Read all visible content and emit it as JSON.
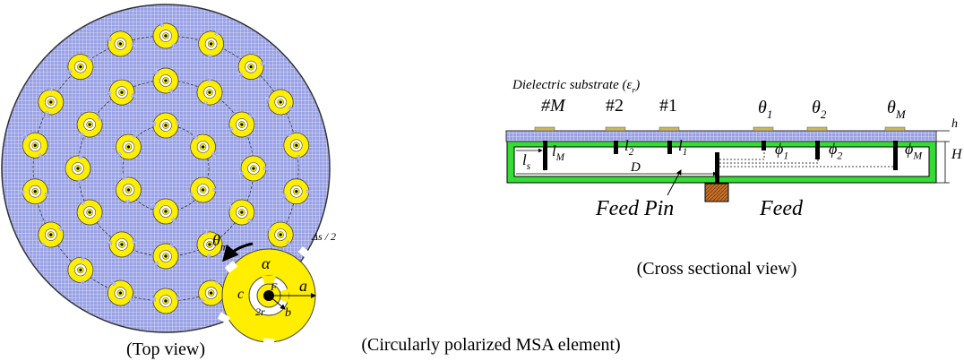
{
  "captions": {
    "top_view": "(Top view)",
    "cross_section": "(Cross sectional view)",
    "element": "(Circularly polarized MSA element)"
  },
  "cross_section_labels": [
    {
      "text": "Dielectric substrate (ε",
      "sub": "r",
      "tail": ")"
    },
    {
      "text": "#M"
    },
    {
      "text": "#2"
    },
    {
      "text": "#1"
    },
    {
      "text": "θ",
      "sub": "1"
    },
    {
      "text": "θ",
      "sub": "2"
    },
    {
      "text": "θ",
      "sub": "M"
    },
    {
      "text": "h"
    },
    {
      "text": "H"
    },
    {
      "text": "l",
      "sub": "s"
    },
    {
      "text": "l",
      "sub": "M"
    },
    {
      "text": "l",
      "sub": "2"
    },
    {
      "text": "l",
      "sub": "1"
    },
    {
      "text": "ϕ",
      "sub": "1"
    },
    {
      "text": "ϕ",
      "sub": "2"
    },
    {
      "text": "ϕ",
      "sub": "M"
    },
    {
      "text": "D"
    },
    {
      "text": "Feed  Pin"
    },
    {
      "text": "Feed"
    }
  ],
  "element_labels": [
    {
      "text": "θ",
      "sub": "m"
    },
    {
      "text": "α"
    },
    {
      "text": "Δs / 2"
    },
    {
      "text": "c"
    },
    {
      "text": "F"
    },
    {
      "text": "a"
    },
    {
      "text": "b"
    },
    {
      "text": "2r"
    }
  ]
}
